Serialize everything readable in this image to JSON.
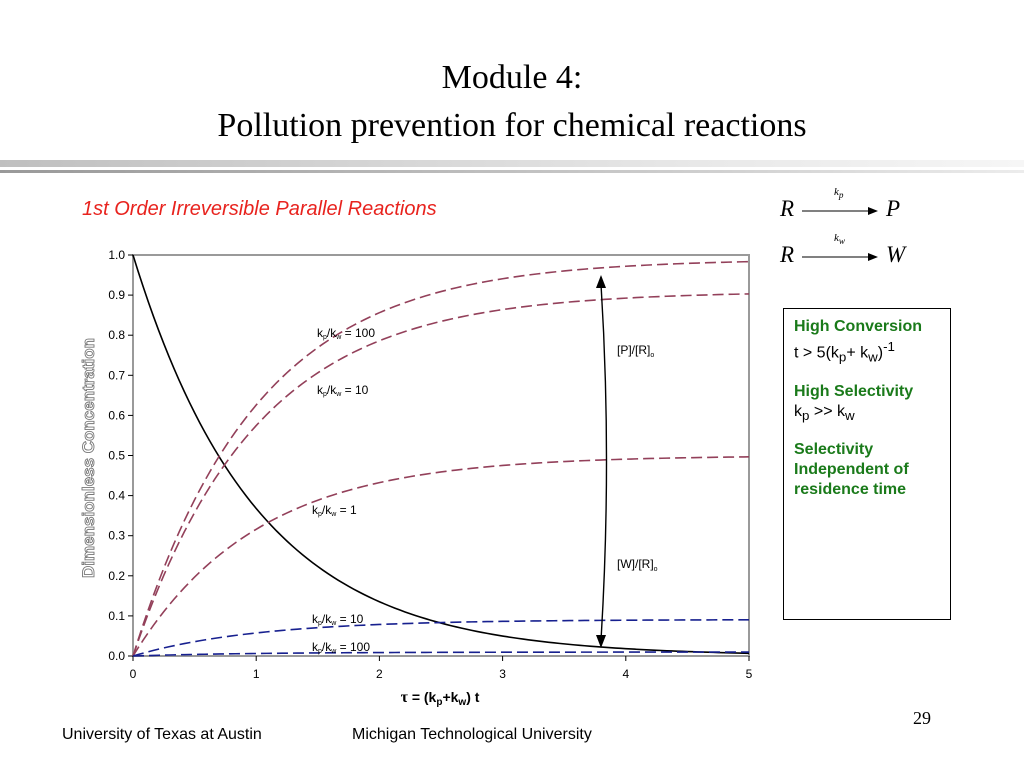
{
  "slide": {
    "title_line1": "Module 4:",
    "title_line2": "Pollution prevention for chemical reactions",
    "subtitle": "1st Order Irreversible Parallel Reactions",
    "reaction1": {
      "reactant": "R",
      "product": "P",
      "rate_constant": "k",
      "rate_sub": "p"
    },
    "reaction2": {
      "reactant": "R",
      "product": "W",
      "rate_constant": "k",
      "rate_sub": "w"
    },
    "side_box": {
      "conversion_heading": "High Conversion",
      "conversion_pre": "t > 5(k",
      "conversion_sub1": "p",
      "conversion_mid": "+ k",
      "conversion_sub2": "w",
      "conversion_post": ")",
      "conversion_sup": "-1",
      "selectivity_heading": "High Selectivity",
      "selectivity_pre": "k",
      "selectivity_sub1": "p",
      "selectivity_mid": " >> k",
      "selectivity_sub2": "w",
      "independent_text": "Selectivity Independent of residence time"
    },
    "footer_left": "University of Texas at Austin",
    "footer_right": "Michigan Technological University",
    "page_number": "29"
  },
  "colors": {
    "product_curve": "#93405a",
    "waste_curve": "#17208f",
    "reactant_curve": "#000000",
    "subtitle": "#e8231e",
    "box_heading": "#1a7a1a"
  },
  "chart_data": {
    "type": "line",
    "ylabel": "Dimensionless Concentration",
    "xlabel_parts": {
      "tau": "τ",
      "pre": " = (k",
      "sub1": "p",
      "mid": "+k",
      "sub2": "w",
      "post": ") t"
    },
    "xlim": [
      0,
      5
    ],
    "ylim": [
      0,
      1
    ],
    "x_ticks": [
      "0",
      "1",
      "2",
      "3",
      "4",
      "5"
    ],
    "y_ticks": [
      "0.0",
      "0.1",
      "0.2",
      "0.3",
      "0.4",
      "0.5",
      "0.6",
      "0.7",
      "0.8",
      "0.9",
      "1.0"
    ],
    "grid": false,
    "reactant_model": "exp(-tau)",
    "product_model": "S*(1-exp(-tau))",
    "waste_model": "(1-S)*(1-exp(-tau))",
    "series": [
      {
        "group": "reactant",
        "ratio": null,
        "label": ""
      },
      {
        "group": "product",
        "ratio": 100,
        "label": "kp/kw = 100"
      },
      {
        "group": "product",
        "ratio": 10,
        "label": "kp/kw = 10"
      },
      {
        "group": "product",
        "ratio": 1,
        "label": "kp/kw = 1"
      },
      {
        "group": "waste",
        "ratio": 10,
        "label": "kp/kw = 10"
      },
      {
        "group": "waste",
        "ratio": 100,
        "label": "kp/kw = 100"
      }
    ],
    "annotations": [
      {
        "text": "[P]/[R]",
        "sub": "o"
      },
      {
        "text": "[W]/[R]",
        "sub": "o"
      }
    ]
  }
}
